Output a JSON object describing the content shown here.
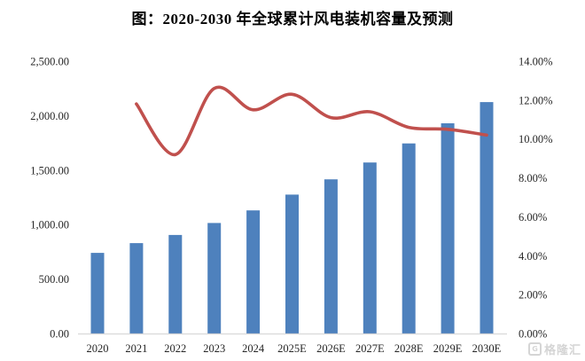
{
  "title": "图：2020-2030 年全球累计风电装机容量及预测",
  "watermark": {
    "logo_letter": "G",
    "text": "格隆汇"
  },
  "colors": {
    "bar": "#4E81BD",
    "line": "#C0504D",
    "axis_line": "#D9D9D9",
    "label_text": "#262626",
    "title_text": "#000000",
    "watermark": "#D5D5D5"
  },
  "chart_data": {
    "type": "bar",
    "title": "图：2020-2030 年全球累计风电装机容量及预测",
    "categories": [
      "2020",
      "2021",
      "2022",
      "2023",
      "2024",
      "2025E",
      "2026E",
      "2027E",
      "2028E",
      "2029E",
      "2030E"
    ],
    "series": [
      {
        "id": "cumulative-capacity-bars",
        "type": "bar",
        "axis": "left",
        "color": "#4E81BD",
        "values": [
          740,
          830,
          905,
          1015,
          1130,
          1275,
          1415,
          1570,
          1745,
          1930,
          2125
        ]
      },
      {
        "id": "growth-rate-line",
        "type": "line",
        "axis": "right",
        "color": "#C0504D",
        "smooth": true,
        "values": [
          null,
          11.8,
          9.2,
          12.6,
          11.5,
          12.3,
          11.1,
          11.4,
          10.6,
          10.5,
          10.2
        ]
      }
    ],
    "left_axis": {
      "min": 0,
      "max": 2500,
      "step": 500,
      "tick_labels": [
        "0.00",
        "500.00",
        "1,000.00",
        "1,500.00",
        "2,000.00",
        "2,500.00"
      ]
    },
    "right_axis": {
      "min": 0,
      "max": 14,
      "step": 2,
      "tick_labels": [
        "0.00%",
        "2.00%",
        "4.00%",
        "6.00%",
        "8.00%",
        "10.00%",
        "12.00%",
        "14.00%"
      ]
    },
    "grid": false,
    "legend": false
  }
}
